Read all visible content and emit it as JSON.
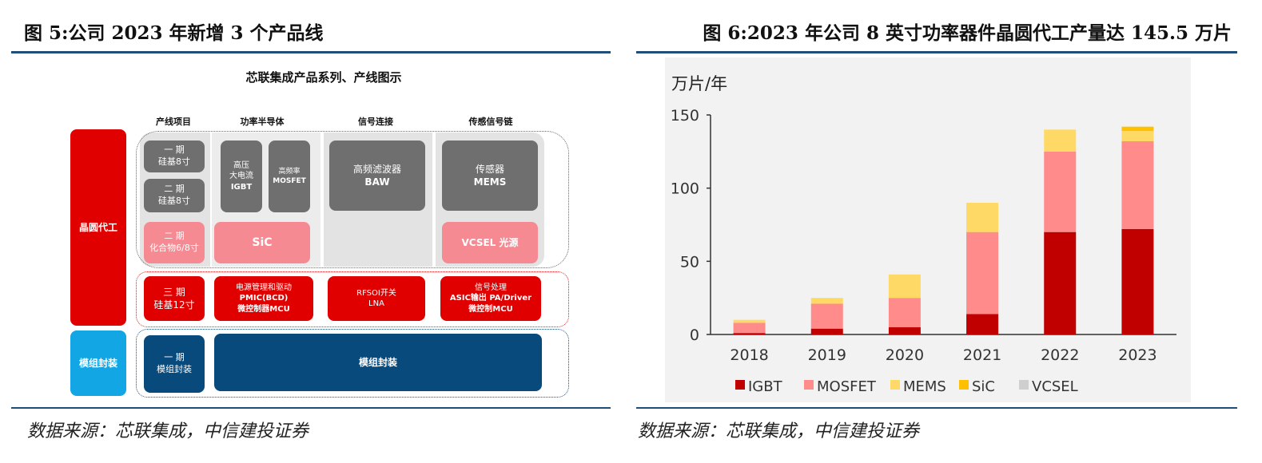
{
  "figure5": {
    "title": "图 5:公司 2023 年新增 3 个产品线",
    "diagram_title": "芯联集成产品系列、产线图示",
    "col_headers": [
      "产线项目",
      "功率半导体",
      "信号连接",
      "传感信号链"
    ],
    "row_labels": {
      "wafer": "晶圆代工",
      "module": "模组封装"
    },
    "cells": {
      "phase1": [
        "一 期",
        "硅基8寸"
      ],
      "phase2": [
        "二 期",
        "硅基8寸"
      ],
      "phase2_compound": [
        "二 期",
        "化合物6/8寸"
      ],
      "phase3": [
        "三 期",
        "硅基12寸"
      ],
      "module_phase1": [
        "一 期",
        "模组封装"
      ],
      "igbt": [
        "高压",
        "大电流",
        "IGBT"
      ],
      "mosfet": [
        "高频率",
        "MOSFET"
      ],
      "baw": [
        "高频滤波器",
        "BAW"
      ],
      "mems": [
        "传感器",
        "MEMS"
      ],
      "sic": "SiC",
      "vcsel": "VCSEL 光源",
      "pmic": [
        "电源管理和驱动",
        "PMIC(BCD)",
        "微控制器MCU"
      ],
      "rfsoi": [
        "RFSOI开关",
        "LNA"
      ],
      "asic": [
        "信号处理",
        "ASIC输出 PA/Driver",
        "微控制MCU"
      ],
      "module_main": "模组封装"
    },
    "source": "数据来源：芯联集成，中信建投证券"
  },
  "figure6": {
    "title": "图 6:2023 年公司 8 英寸功率器件晶圆代工产量达 145.5 万片",
    "source": "数据来源：芯联集成，中信建投证券"
  },
  "chart_data": {
    "type": "bar",
    "stacked": true,
    "ylabel": "万片/年",
    "ylim": [
      0,
      150
    ],
    "yticks": [
      0,
      50,
      100,
      150
    ],
    "categories": [
      "2018",
      "2019",
      "2020",
      "2021",
      "2022",
      "2023"
    ],
    "series": [
      {
        "name": "IGBT",
        "color": "#c00000",
        "values": [
          1,
          4,
          5,
          14,
          70,
          72
        ]
      },
      {
        "name": "MOSFET",
        "color": "#ff8b8b",
        "values": [
          7,
          17,
          20,
          56,
          55,
          60
        ]
      },
      {
        "name": "MEMS",
        "color": "#ffd966",
        "values": [
          2,
          4,
          16,
          20,
          15,
          7
        ]
      },
      {
        "name": "SiC",
        "color": "#ffc000",
        "values": [
          0,
          0,
          0,
          0,
          0,
          3
        ]
      },
      {
        "name": "VCSEL",
        "color": "#cfcfcf",
        "values": [
          0,
          0,
          0,
          0,
          0,
          0
        ]
      }
    ],
    "grid": false,
    "legend": "bottom"
  }
}
